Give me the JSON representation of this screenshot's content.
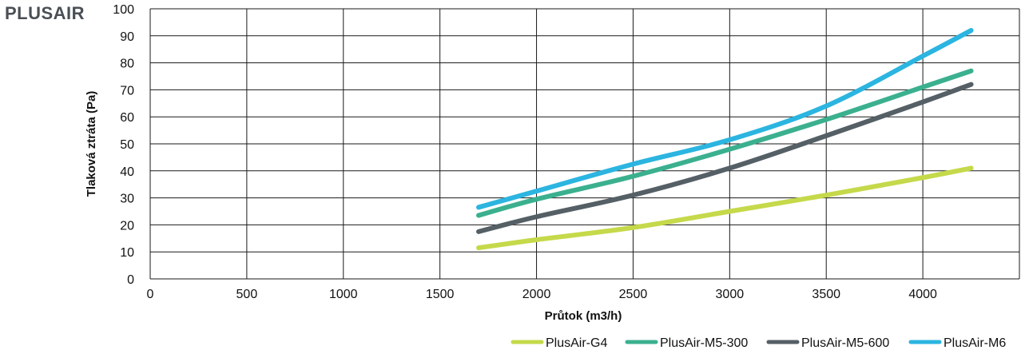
{
  "brand": "PLUSAIR",
  "chart_data": {
    "type": "line",
    "xlabel": "Průtok (m3/h)",
    "ylabel": "Tlaková ztráta (Pa)",
    "xlim": [
      0,
      4500
    ],
    "ylim": [
      0,
      100
    ],
    "xticks": [
      0,
      500,
      1000,
      1500,
      2000,
      2500,
      3000,
      3500,
      4000
    ],
    "yticks": [
      0,
      10,
      20,
      30,
      40,
      50,
      60,
      70,
      80,
      90,
      100
    ],
    "grid": true,
    "legend_position": "bottom-right",
    "series": [
      {
        "name": "PlusAir-G4",
        "color": "#c5d94a",
        "x": [
          1700,
          2000,
          2500,
          3000,
          3500,
          4000,
          4250
        ],
        "y": [
          11.5,
          14.5,
          19,
          25,
          31,
          37.5,
          41
        ]
      },
      {
        "name": "PlusAir-M5-300",
        "color": "#3bb08f",
        "x": [
          1700,
          2000,
          2500,
          3000,
          3500,
          4000,
          4250
        ],
        "y": [
          23.5,
          29.5,
          38,
          48,
          59,
          71,
          77
        ]
      },
      {
        "name": "PlusAir-M5-600",
        "color": "#555f66",
        "x": [
          1700,
          2000,
          2500,
          3000,
          3500,
          4000,
          4250
        ],
        "y": [
          17.5,
          23,
          31,
          41,
          53,
          65.5,
          72
        ]
      },
      {
        "name": "PlusAir-M6",
        "color": "#2bb5e0",
        "x": [
          1700,
          2000,
          2500,
          3000,
          3500,
          4000,
          4250
        ],
        "y": [
          26.5,
          32.5,
          42.5,
          51.5,
          64,
          82.5,
          92
        ]
      }
    ]
  }
}
